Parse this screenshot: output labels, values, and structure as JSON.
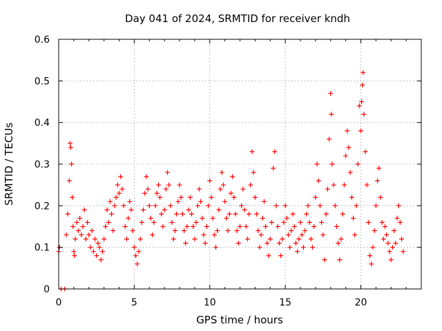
{
  "chart_data": {
    "type": "scatter",
    "title": "Day 041 of 2024, SRMTID for receiver kndh",
    "xlabel": "GPS time / hours",
    "ylabel": "SRMTID / TECUs",
    "xlim": [
      0,
      24
    ],
    "ylim": [
      0,
      0.6
    ],
    "xticks": [
      0,
      5,
      10,
      15,
      20
    ],
    "xtick_labels": [
      "0",
      "5",
      "10",
      "15",
      "20"
    ],
    "yticks": [
      0,
      0.1,
      0.2,
      0.3,
      0.4,
      0.5,
      0.6
    ],
    "ytick_labels": [
      "0",
      "0.1",
      "0.2",
      "0.3",
      "0.4",
      "0.5",
      "0.6"
    ],
    "grid": true,
    "marker": "+",
    "marker_color": "#ff0000",
    "legend": "none",
    "series": [
      {
        "name": "SRMTID",
        "points": [
          [
            0.0,
            0.09
          ],
          [
            0.05,
            0.1
          ],
          [
            0.15,
            0.0
          ],
          [
            0.4,
            0.0
          ],
          [
            0.5,
            0.13
          ],
          [
            0.6,
            0.18
          ],
          [
            0.7,
            0.26
          ],
          [
            0.75,
            0.35
          ],
          [
            0.8,
            0.34
          ],
          [
            0.85,
            0.3
          ],
          [
            0.9,
            0.22
          ],
          [
            0.95,
            0.15
          ],
          [
            1.0,
            0.09
          ],
          [
            1.05,
            0.08
          ],
          [
            1.1,
            0.12
          ],
          [
            1.2,
            0.16
          ],
          [
            1.3,
            0.14
          ],
          [
            1.4,
            0.17
          ],
          [
            1.5,
            0.13
          ],
          [
            1.6,
            0.15
          ],
          [
            1.7,
            0.19
          ],
          [
            1.8,
            0.12
          ],
          [
            1.9,
            0.16
          ],
          [
            2.0,
            0.13
          ],
          [
            2.1,
            0.1
          ],
          [
            2.2,
            0.14
          ],
          [
            2.3,
            0.09
          ],
          [
            2.4,
            0.12
          ],
          [
            2.5,
            0.08
          ],
          [
            2.6,
            0.11
          ],
          [
            2.7,
            0.1
          ],
          [
            2.8,
            0.07
          ],
          [
            2.9,
            0.09
          ],
          [
            3.0,
            0.12
          ],
          [
            3.1,
            0.15
          ],
          [
            3.2,
            0.19
          ],
          [
            3.3,
            0.16
          ],
          [
            3.4,
            0.21
          ],
          [
            3.5,
            0.18
          ],
          [
            3.6,
            0.14
          ],
          [
            3.7,
            0.2
          ],
          [
            3.8,
            0.22
          ],
          [
            3.9,
            0.25
          ],
          [
            4.0,
            0.23
          ],
          [
            4.1,
            0.27
          ],
          [
            4.2,
            0.24
          ],
          [
            4.3,
            0.2
          ],
          [
            4.4,
            0.15
          ],
          [
            4.5,
            0.12
          ],
          [
            4.6,
            0.17
          ],
          [
            4.7,
            0.21
          ],
          [
            4.8,
            0.19
          ],
          [
            4.9,
            0.14
          ],
          [
            5.0,
            0.1
          ],
          [
            5.1,
            0.08
          ],
          [
            5.2,
            0.06
          ],
          [
            5.3,
            0.09
          ],
          [
            5.4,
            0.12
          ],
          [
            5.5,
            0.16
          ],
          [
            5.6,
            0.19
          ],
          [
            5.7,
            0.23
          ],
          [
            5.8,
            0.27
          ],
          [
            5.9,
            0.24
          ],
          [
            6.0,
            0.2
          ],
          [
            6.1,
            0.17
          ],
          [
            6.2,
            0.13
          ],
          [
            6.3,
            0.16
          ],
          [
            6.4,
            0.2
          ],
          [
            6.5,
            0.23
          ],
          [
            6.6,
            0.25
          ],
          [
            6.7,
            0.22
          ],
          [
            6.8,
            0.18
          ],
          [
            6.9,
            0.15
          ],
          [
            7.0,
            0.19
          ],
          [
            7.1,
            0.24
          ],
          [
            7.2,
            0.28
          ],
          [
            7.3,
            0.25
          ],
          [
            7.4,
            0.2
          ],
          [
            7.5,
            0.16
          ],
          [
            7.6,
            0.12
          ],
          [
            7.7,
            0.14
          ],
          [
            7.8,
            0.18
          ],
          [
            7.9,
            0.21
          ],
          [
            8.0,
            0.25
          ],
          [
            8.1,
            0.22
          ],
          [
            8.2,
            0.18
          ],
          [
            8.3,
            0.14
          ],
          [
            8.4,
            0.11
          ],
          [
            8.5,
            0.15
          ],
          [
            8.6,
            0.19
          ],
          [
            8.7,
            0.22
          ],
          [
            8.8,
            0.18
          ],
          [
            8.9,
            0.15
          ],
          [
            9.0,
            0.12
          ],
          [
            9.1,
            0.16
          ],
          [
            9.2,
            0.2
          ],
          [
            9.3,
            0.24
          ],
          [
            9.4,
            0.21
          ],
          [
            9.5,
            0.17
          ],
          [
            9.6,
            0.13
          ],
          [
            9.7,
            0.11
          ],
          [
            9.8,
            0.15
          ],
          [
            9.9,
            0.2
          ],
          [
            10.0,
            0.26
          ],
          [
            10.1,
            0.22
          ],
          [
            10.2,
            0.17
          ],
          [
            10.3,
            0.13
          ],
          [
            10.4,
            0.1
          ],
          [
            10.5,
            0.14
          ],
          [
            10.6,
            0.19
          ],
          [
            10.7,
            0.24
          ],
          [
            10.8,
            0.28
          ],
          [
            10.9,
            0.25
          ],
          [
            11.0,
            0.21
          ],
          [
            11.1,
            0.17
          ],
          [
            11.2,
            0.14
          ],
          [
            11.3,
            0.18
          ],
          [
            11.4,
            0.23
          ],
          [
            11.5,
            0.27
          ],
          [
            11.6,
            0.22
          ],
          [
            11.7,
            0.18
          ],
          [
            11.8,
            0.14
          ],
          [
            11.9,
            0.11
          ],
          [
            12.0,
            0.15
          ],
          [
            12.1,
            0.2
          ],
          [
            12.2,
            0.24
          ],
          [
            12.3,
            0.19
          ],
          [
            12.4,
            0.15
          ],
          [
            12.5,
            0.12
          ],
          [
            12.6,
            0.18
          ],
          [
            12.7,
            0.25
          ],
          [
            12.8,
            0.33
          ],
          [
            12.9,
            0.28
          ],
          [
            13.0,
            0.22
          ],
          [
            13.1,
            0.18
          ],
          [
            13.2,
            0.14
          ],
          [
            13.3,
            0.1
          ],
          [
            13.4,
            0.13
          ],
          [
            13.5,
            0.17
          ],
          [
            13.6,
            0.21
          ],
          [
            13.7,
            0.15
          ],
          [
            13.8,
            0.11
          ],
          [
            13.9,
            0.08
          ],
          [
            14.0,
            0.12
          ],
          [
            14.1,
            0.16
          ],
          [
            14.2,
            0.29
          ],
          [
            14.3,
            0.33
          ],
          [
            14.4,
            0.2
          ],
          [
            14.5,
            0.15
          ],
          [
            14.6,
            0.11
          ],
          [
            14.7,
            0.08
          ],
          [
            14.8,
            0.12
          ],
          [
            14.9,
            0.16
          ],
          [
            15.0,
            0.2
          ],
          [
            15.1,
            0.17
          ],
          [
            15.2,
            0.13
          ],
          [
            15.3,
            0.1
          ],
          [
            15.4,
            0.14
          ],
          [
            15.5,
            0.18
          ],
          [
            15.6,
            0.15
          ],
          [
            15.7,
            0.11
          ],
          [
            15.8,
            0.09
          ],
          [
            15.9,
            0.12
          ],
          [
            16.0,
            0.16
          ],
          [
            16.1,
            0.13
          ],
          [
            16.2,
            0.1
          ],
          [
            16.3,
            0.14
          ],
          [
            16.4,
            0.18
          ],
          [
            16.5,
            0.2
          ],
          [
            16.6,
            0.16
          ],
          [
            16.7,
            0.12
          ],
          [
            16.8,
            0.1
          ],
          [
            16.9,
            0.15
          ],
          [
            17.0,
            0.22
          ],
          [
            17.1,
            0.3
          ],
          [
            17.2,
            0.26
          ],
          [
            17.3,
            0.2
          ],
          [
            17.4,
            0.16
          ],
          [
            17.5,
            0.13
          ],
          [
            17.6,
            0.07
          ],
          [
            17.7,
            0.18
          ],
          [
            17.8,
            0.24
          ],
          [
            17.9,
            0.36
          ],
          [
            18.0,
            0.47
          ],
          [
            18.05,
            0.42
          ],
          [
            18.1,
            0.3
          ],
          [
            18.2,
            0.25
          ],
          [
            18.3,
            0.2
          ],
          [
            18.4,
            0.15
          ],
          [
            18.5,
            0.11
          ],
          [
            18.6,
            0.07
          ],
          [
            18.7,
            0.12
          ],
          [
            18.8,
            0.18
          ],
          [
            18.9,
            0.25
          ],
          [
            19.0,
            0.32
          ],
          [
            19.1,
            0.38
          ],
          [
            19.2,
            0.34
          ],
          [
            19.3,
            0.28
          ],
          [
            19.4,
            0.22
          ],
          [
            19.5,
            0.17
          ],
          [
            19.6,
            0.13
          ],
          [
            19.7,
            0.2
          ],
          [
            19.8,
            0.3
          ],
          [
            19.9,
            0.44
          ],
          [
            20.0,
            0.38
          ],
          [
            20.05,
            0.45
          ],
          [
            20.1,
            0.49
          ],
          [
            20.15,
            0.52
          ],
          [
            20.2,
            0.42
          ],
          [
            20.3,
            0.33
          ],
          [
            20.4,
            0.25
          ],
          [
            20.5,
            0.16
          ],
          [
            20.6,
            0.08
          ],
          [
            20.7,
            0.06
          ],
          [
            20.8,
            0.1
          ],
          [
            20.9,
            0.14
          ],
          [
            21.0,
            0.2
          ],
          [
            21.1,
            0.26
          ],
          [
            21.2,
            0.29
          ],
          [
            21.3,
            0.22
          ],
          [
            21.4,
            0.16
          ],
          [
            21.5,
            0.12
          ],
          [
            21.6,
            0.15
          ],
          [
            21.7,
            0.13
          ],
          [
            21.8,
            0.11
          ],
          [
            21.9,
            0.09
          ],
          [
            22.0,
            0.07
          ],
          [
            22.1,
            0.1
          ],
          [
            22.2,
            0.14
          ],
          [
            22.3,
            0.11
          ],
          [
            22.4,
            0.17
          ],
          [
            22.5,
            0.2
          ],
          [
            22.6,
            0.16
          ],
          [
            22.7,
            0.12
          ],
          [
            22.8,
            0.09
          ]
        ]
      }
    ]
  }
}
